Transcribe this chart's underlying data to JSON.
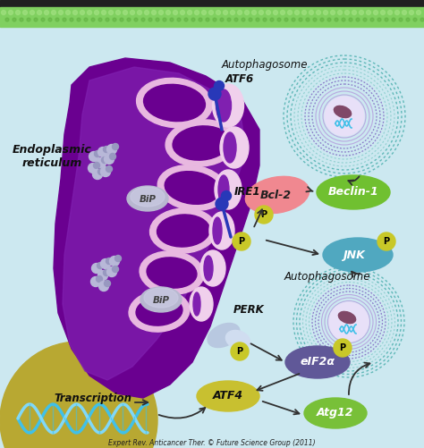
{
  "bg_color": "#cce8f0",
  "caption": "Expert Rev. Anticancer Ther. © Future Science Group (2011)",
  "labels": {
    "autophagosome_top": "Autophagosome",
    "autophagosome_bottom": "Autophagosome",
    "er": "Endoplasmic\nreticulum",
    "transcription": "Transcription",
    "atf6": "ATF6",
    "ire1": "IRE1",
    "perk": "PERK",
    "bip_top": "BiP",
    "bip_bottom": "BiP",
    "bcl2": "Bcl-2",
    "beclin1": "Beclin-1",
    "jnk": "JNK",
    "eif2a": "eIF2α",
    "atf4": "ATF4",
    "atg12": "Atg12"
  },
  "colors": {
    "er_purple_dark": "#6a0090",
    "er_purple_mid": "#8020b0",
    "er_purple_light": "#a040c8",
    "er_pink": "#e8b8e0",
    "er_pink_light": "#f0d0ec",
    "nucleus_bg": "#b8a832",
    "autophagosome_teal": "#60b8b8",
    "autophagosome_teal_light": "#90d0d0",
    "autophagosome_purple_ring": "#8878c8",
    "autophagosome_purple_inner": "#b8a8e0",
    "autophagosome_center_bg": "#e8e0f8",
    "mito_color": "#804868",
    "dna_helix_color": "#40c0e8",
    "bcl2_color": "#f08890",
    "beclin1_color": "#70c030",
    "jnk_color": "#50a8c0",
    "eif2a_color": "#605898",
    "atf4_color": "#c8c030",
    "atg12_color": "#78c038",
    "p_circle_color": "#c8c828",
    "bip_color": "#b8b8d0",
    "bip_text": "#404040",
    "arrow_color": "#303030",
    "atf6_stem_color": "#2838b8",
    "ire1_stem_color": "#2838b8",
    "perk_color": "#b8c8e0",
    "perk_color2": "#d0ddf0",
    "ribosome_color": "#b8b8d8",
    "ribosome_shade": "#9898c0",
    "text_dark": "#202020",
    "text_black": "#101010",
    "membrane_green": "#80d060",
    "membrane_dark": "#202020",
    "membrane_dot": "#a0e080"
  },
  "figure_size": [
    4.74,
    5.01
  ],
  "dpi": 100
}
